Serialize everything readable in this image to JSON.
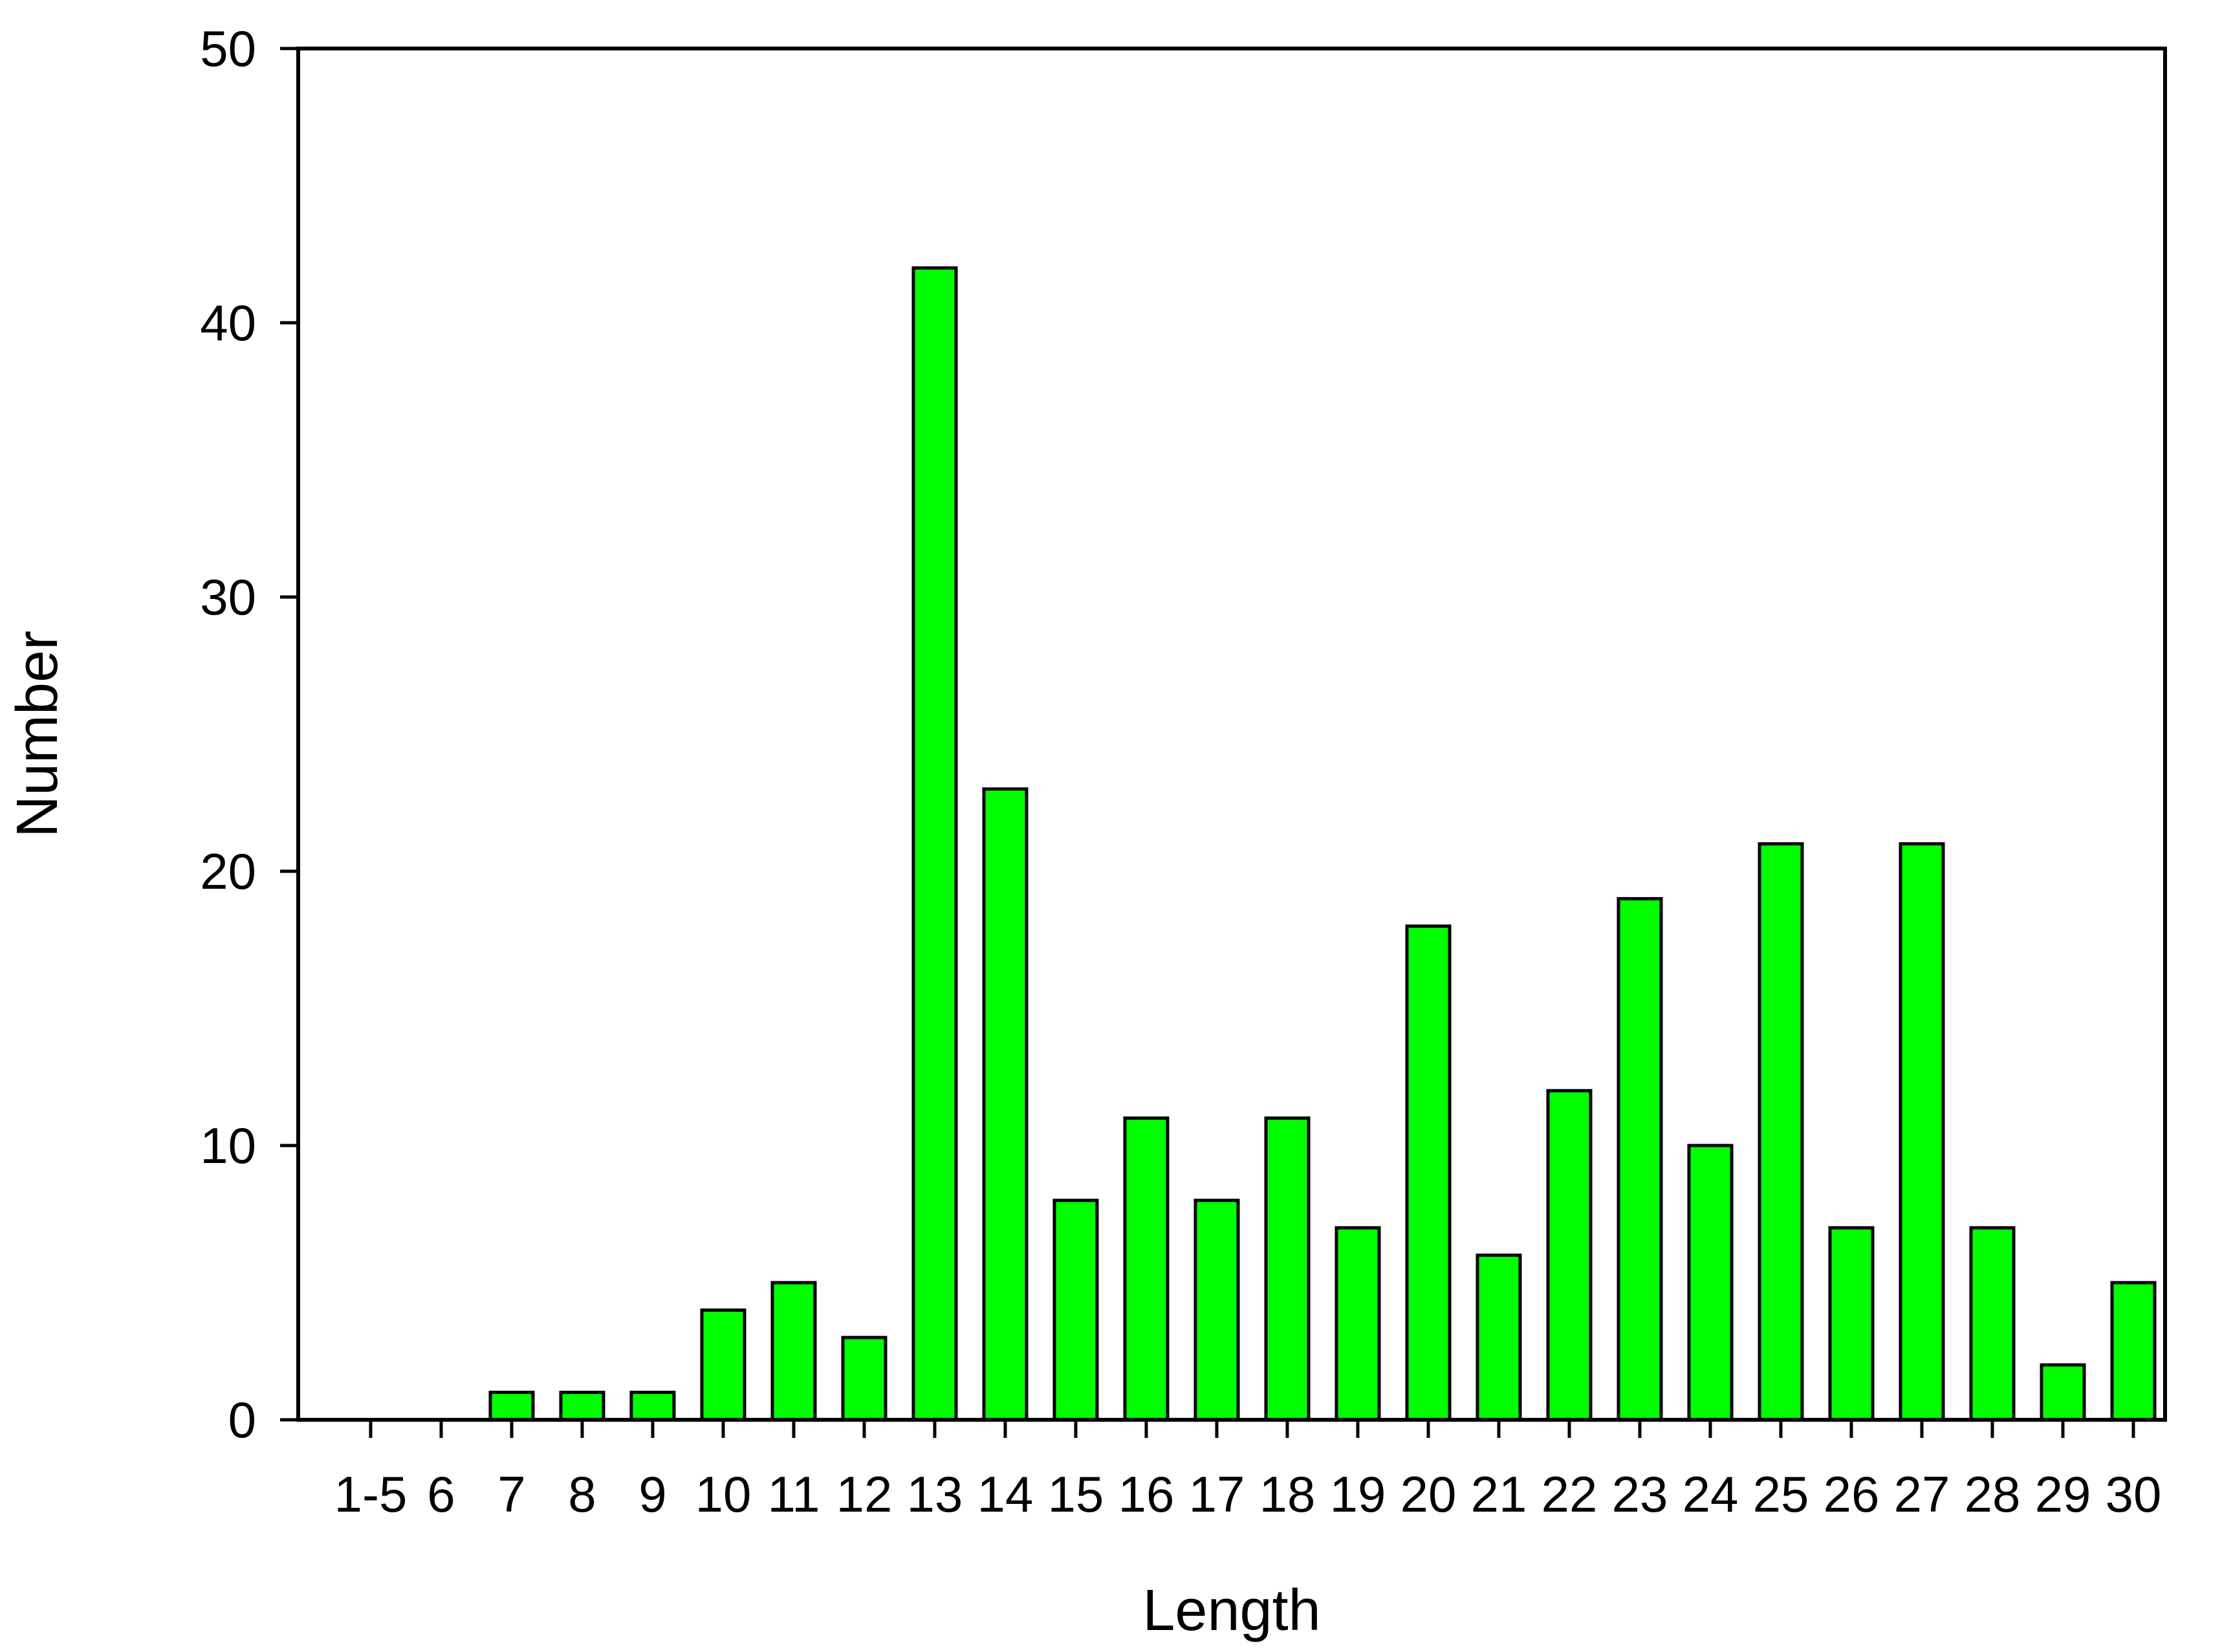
{
  "chart_data": {
    "type": "bar",
    "title": "",
    "xlabel": "Length",
    "ylabel": "Number",
    "categories": [
      "1-5",
      "6",
      "7",
      "8",
      "9",
      "10",
      "11",
      "12",
      "13",
      "14",
      "15",
      "16",
      "17",
      "18",
      "19",
      "20",
      "21",
      "22",
      "23",
      "24",
      "25",
      "26",
      "27",
      "28",
      "29",
      "30"
    ],
    "values": [
      0,
      0,
      1,
      1,
      1,
      4,
      5,
      3,
      42,
      23,
      8,
      11,
      8,
      11,
      7,
      18,
      6,
      12,
      19,
      10,
      21,
      7,
      21,
      7,
      2,
      5
    ],
    "ylim": [
      0,
      50
    ],
    "yticks": [
      0,
      10,
      20,
      30,
      40,
      50
    ],
    "grid": false,
    "legend": "none",
    "bar_color": "#00ff00",
    "bar_edge_color": "#000000"
  }
}
